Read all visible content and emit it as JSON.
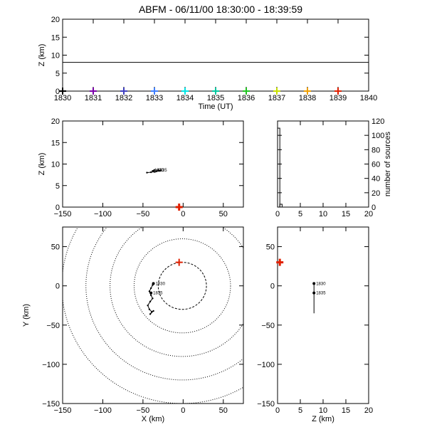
{
  "title": "ABFM - 06/11/00 18:30:00 - 18:39:59",
  "chart_data": [
    {
      "type": "scatter",
      "panel": "time-height",
      "xlabel": "Time (UT)",
      "ylabel": "Z (km)",
      "xlim": [
        1830,
        1840
      ],
      "ylim": [
        0,
        20
      ],
      "xticks": [
        1830,
        1831,
        1832,
        1833,
        1834,
        1835,
        1836,
        1837,
        1838,
        1839,
        1840
      ],
      "xtick_labels": [
        "1830",
        "1831",
        "1832",
        "1833",
        "1834",
        "1835",
        "1836",
        "1837",
        "1838",
        "1839",
        "1840"
      ],
      "yticks": [
        0,
        5,
        10,
        15,
        20
      ],
      "ytick_labels": [
        "0",
        "5",
        "10",
        "15",
        "20"
      ],
      "reference_height_km": 8,
      "markers": [
        {
          "time": 1830,
          "z": 0,
          "color": "#000000"
        },
        {
          "time": 1831,
          "z": 0,
          "color": "#7a00a8"
        },
        {
          "time": 1832,
          "z": 0,
          "color": "#3f3fbf"
        },
        {
          "time": 1833,
          "z": 0,
          "color": "#3f7fff"
        },
        {
          "time": 1834,
          "z": 0,
          "color": "#00e5e5"
        },
        {
          "time": 1835,
          "z": 0,
          "color": "#00c8a0"
        },
        {
          "time": 1836,
          "z": 0,
          "color": "#22c422"
        },
        {
          "time": 1837,
          "z": 0,
          "color": "#c8e000"
        },
        {
          "time": 1838,
          "z": 0,
          "color": "#f0a000"
        },
        {
          "time": 1839,
          "z": 0,
          "color": "#e02000"
        }
      ]
    },
    {
      "type": "scatter",
      "panel": "x-z",
      "ylabel": "Z (km)",
      "xlim": [
        -150,
        75
      ],
      "ylim": [
        0,
        20
      ],
      "xticks": [
        -150,
        -100,
        -50,
        0,
        50
      ],
      "xtick_labels": [
        "−150",
        "−100",
        "−50",
        "0",
        "50"
      ],
      "yticks": [
        0,
        5,
        10,
        15,
        20
      ],
      "ytick_labels": [
        "0",
        "5",
        "10",
        "15",
        "20"
      ],
      "track": [
        [
          -45,
          8.0
        ],
        [
          -40,
          8.1
        ],
        [
          -36,
          8.2
        ],
        [
          -33,
          8.3
        ],
        [
          -30,
          8.4
        ],
        [
          -28,
          8.5
        ],
        [
          -31,
          8.6
        ],
        [
          -36,
          8.6
        ],
        [
          -38,
          8.4
        ],
        [
          -35,
          8.2
        ]
      ],
      "track_labels": [
        {
          "x": -36,
          "z": 8.6,
          "text": "1830"
        },
        {
          "x": -32,
          "z": 8.6,
          "text": "1835"
        }
      ],
      "site_marker": {
        "x": -5,
        "z": 0,
        "color": "#e02000"
      }
    },
    {
      "type": "bar",
      "panel": "height-histogram",
      "ylabel": "number of sources",
      "xlim": [
        0,
        20
      ],
      "ylim": [
        0,
        120
      ],
      "xticks": [
        0,
        5,
        10,
        15,
        20
      ],
      "xtick_labels": [
        "0",
        "5",
        "10",
        "15",
        "20"
      ],
      "yticks": [
        0,
        20,
        40,
        60,
        80,
        100,
        120
      ],
      "ytick_labels": [
        "0",
        "20",
        "40",
        "60",
        "80",
        "100",
        "120"
      ],
      "bins": [
        {
          "from": 0,
          "to": 0.5,
          "count": 110
        },
        {
          "from": 0.5,
          "to": 1.0,
          "count": 4
        }
      ]
    },
    {
      "type": "scatter",
      "panel": "plan-view",
      "xlabel": "X (km)",
      "ylabel": "Y (km)",
      "xlim": [
        -150,
        75
      ],
      "ylim": [
        -150,
        75
      ],
      "xticks": [
        -150,
        -100,
        -50,
        0,
        50
      ],
      "xtick_labels": [
        "−150",
        "−100",
        "−50",
        "0",
        "50"
      ],
      "yticks": [
        -150,
        -100,
        -50,
        0,
        50
      ],
      "ytick_labels": [
        "−150",
        "−100",
        "−50",
        "0",
        "50"
      ],
      "range_rings": {
        "center": [
          -1,
          0
        ],
        "radii_km": [
          30,
          60,
          90,
          120,
          150
        ],
        "first_ring_style": "dashed",
        "other_rings_style": "dotted"
      },
      "track": [
        [
          -37,
          3
        ],
        [
          -38,
          1
        ],
        [
          -40,
          -3
        ],
        [
          -42,
          -7
        ],
        [
          -40,
          -12
        ],
        [
          -38,
          -16
        ],
        [
          -41,
          -20
        ],
        [
          -44,
          -25
        ],
        [
          -42,
          -30
        ],
        [
          -39,
          -33
        ],
        [
          -41,
          -36
        ],
        [
          -37,
          -32
        ]
      ],
      "track_labels": [
        {
          "x": -37,
          "y": 3,
          "text": "1830"
        },
        {
          "x": -40,
          "y": -9,
          "text": "1835"
        }
      ],
      "site_marker": {
        "x": -5,
        "y": 30,
        "color": "#e02000"
      }
    },
    {
      "type": "scatter",
      "panel": "z-y",
      "xlabel": "Z (km)",
      "xlim": [
        0,
        20
      ],
      "ylim": [
        -150,
        75
      ],
      "xticks": [
        0,
        5,
        10,
        15,
        20
      ],
      "xtick_labels": [
        "0",
        "5",
        "10",
        "15",
        "20"
      ],
      "yticks": [
        -150,
        -100,
        -50,
        0,
        50
      ],
      "ytick_labels": [
        "−150",
        "−100",
        "−50",
        "0",
        "50"
      ],
      "track": [
        [
          8,
          3
        ],
        [
          8,
          -35
        ]
      ],
      "track_labels": [
        {
          "z": 8,
          "y": 3,
          "text": "1830"
        },
        {
          "z": 8,
          "y": -9,
          "text": "1835"
        }
      ],
      "site_marker": {
        "z": 0.5,
        "y": 30,
        "color": "#e02000"
      }
    }
  ]
}
